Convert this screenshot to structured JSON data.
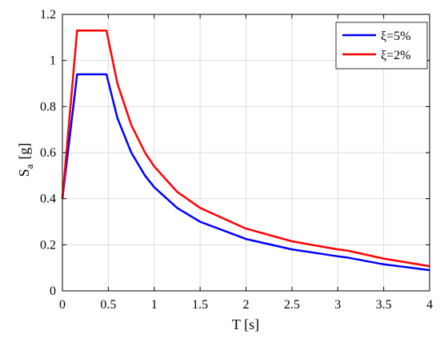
{
  "chart_data": {
    "type": "line",
    "title": "",
    "xlabel": "T [s]",
    "ylabel_main": "S",
    "ylabel_sub": "a",
    "ylabel_unit": "[g]",
    "xlim": [
      0,
      4
    ],
    "ylim": [
      0,
      1.2
    ],
    "x_ticks": [
      "0",
      "0.5",
      "1",
      "1.5",
      "2",
      "2.5",
      "3",
      "3.5",
      "4"
    ],
    "y_ticks": [
      "0",
      "0.2",
      "0.4",
      "0.6",
      "0.8",
      "1",
      "1.2"
    ],
    "grid": true,
    "legend_position": "top-right",
    "series": [
      {
        "name": "ξ=5%",
        "color": "#0000ff",
        "x": [
          0,
          0.16,
          0.48,
          0.6,
          0.75,
          0.9,
          1.0,
          1.25,
          1.5,
          2.0,
          2.5,
          3.0,
          3.1,
          3.5,
          4.0
        ],
        "y": [
          0.4,
          0.94,
          0.94,
          0.75,
          0.6,
          0.5,
          0.45,
          0.36,
          0.3,
          0.225,
          0.18,
          0.15,
          0.145,
          0.115,
          0.09
        ]
      },
      {
        "name": "ξ=2%",
        "color": "#ff0000",
        "x": [
          0,
          0.16,
          0.48,
          0.6,
          0.75,
          0.9,
          1.0,
          1.25,
          1.5,
          2.0,
          2.5,
          3.0,
          3.1,
          3.5,
          4.0
        ],
        "y": [
          0.4,
          1.13,
          1.13,
          0.9,
          0.72,
          0.6,
          0.54,
          0.43,
          0.36,
          0.27,
          0.215,
          0.18,
          0.175,
          0.14,
          0.107
        ]
      }
    ]
  }
}
